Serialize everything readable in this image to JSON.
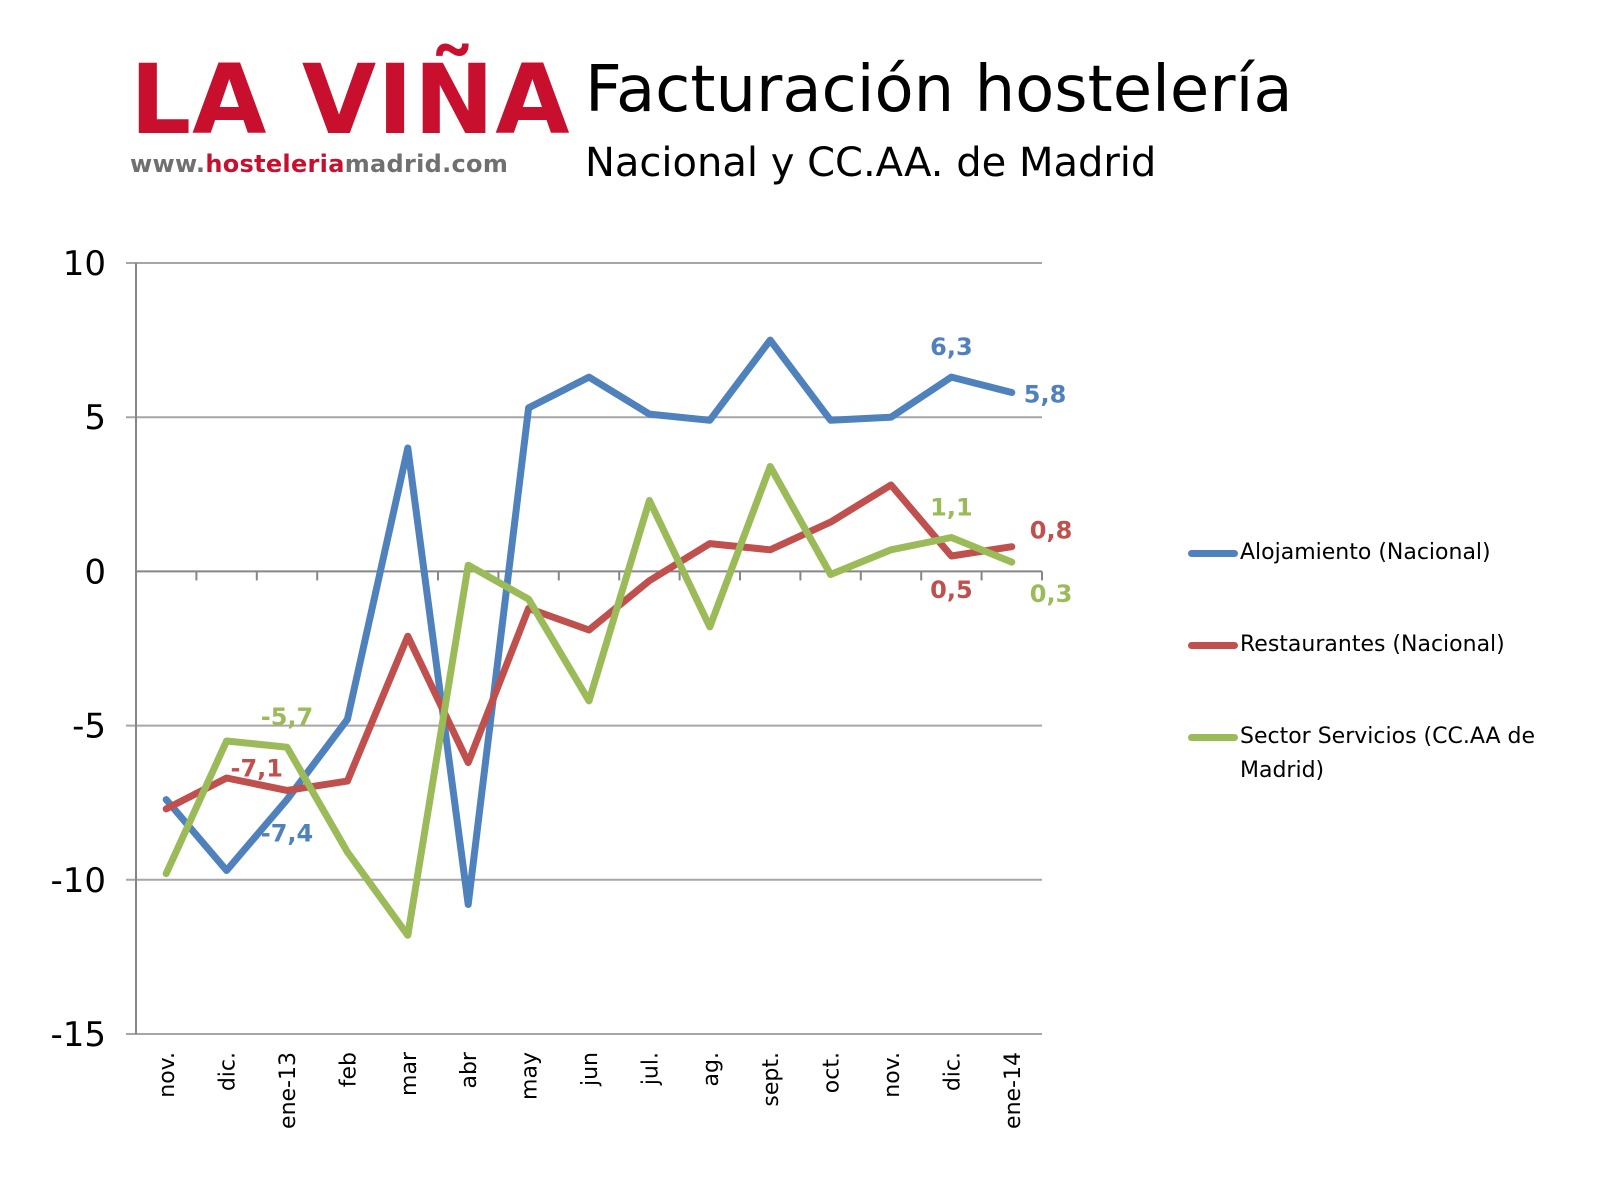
{
  "logo": {
    "brand": "LA VIÑA",
    "url_prefix": "www.",
    "url_highlight": "hosteleria",
    "url_suffix": "madrid.com"
  },
  "header": {
    "title": "Facturación hostelería",
    "subtitle": "Nacional y CC.AA. de Madrid"
  },
  "colors": {
    "alojamiento": "#4f81bd",
    "restaurantes": "#c0504d",
    "servicios": "#9bbb59",
    "grid": "#a6a6a6",
    "axis": "#868686"
  },
  "chart_data": {
    "type": "line",
    "title": "",
    "xlabel": "",
    "ylabel": "",
    "ylim": [
      -15,
      10
    ],
    "yticks": [
      10,
      5,
      0,
      -5,
      -10,
      -15
    ],
    "grid": true,
    "legend_position": "right",
    "categories": [
      "nov.",
      "dic.",
      "ene-13",
      "feb",
      "mar",
      "abr",
      "may",
      "jun",
      "jul.",
      "ag.",
      "sept.",
      "oct.",
      "nov.",
      "dic.",
      "ene-14"
    ],
    "series": [
      {
        "name": "Alojamiento (Nacional)",
        "color": "#4f81bd",
        "values": [
          -7.4,
          -9.7,
          -7.4,
          -4.8,
          4.0,
          -10.8,
          5.3,
          6.3,
          5.1,
          4.9,
          7.5,
          4.9,
          5.0,
          6.3,
          5.8
        ],
        "labels": [
          {
            "index": 2,
            "text": "-7,4",
            "pos": "below"
          },
          {
            "index": 13,
            "text": "6,3",
            "pos": "above"
          },
          {
            "index": 14,
            "text": "5,8",
            "pos": "right"
          }
        ]
      },
      {
        "name": "Restaurantes (Nacional)",
        "color": "#c0504d",
        "values": [
          -7.7,
          -6.7,
          -7.1,
          -6.8,
          -2.1,
          -6.2,
          -1.2,
          -1.9,
          -0.3,
          0.9,
          0.7,
          1.6,
          2.8,
          0.5,
          0.8
        ],
        "labels": [
          {
            "index": 2,
            "text": "-7,1",
            "pos": "left-above"
          },
          {
            "index": 13,
            "text": "0,5",
            "pos": "below"
          },
          {
            "index": 14,
            "text": "0,8",
            "pos": "right-above"
          }
        ]
      },
      {
        "name": "Sector Servicios (CC.AA de Madrid)",
        "color": "#9bbb59",
        "values": [
          -9.8,
          -5.5,
          -5.7,
          -9.1,
          -11.8,
          0.2,
          -0.9,
          -4.2,
          2.3,
          -1.8,
          3.4,
          -0.1,
          0.7,
          1.1,
          0.3
        ],
        "labels": [
          {
            "index": 2,
            "text": "-5,7",
            "pos": "above"
          },
          {
            "index": 13,
            "text": "1,1",
            "pos": "above"
          },
          {
            "index": 14,
            "text": "0,3",
            "pos": "right-below"
          }
        ]
      }
    ]
  }
}
